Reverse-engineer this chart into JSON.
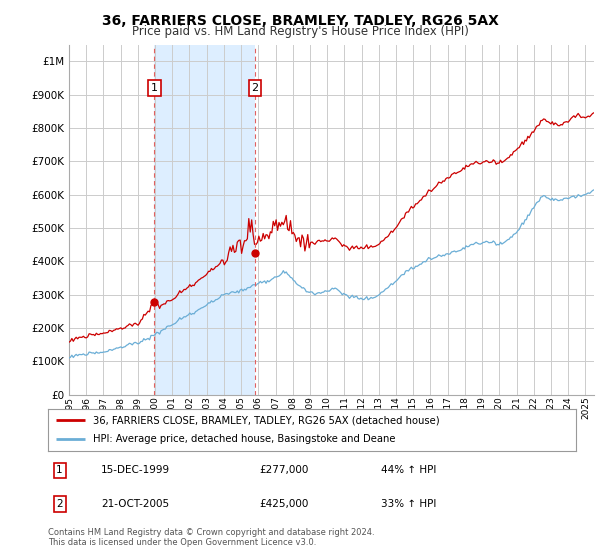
{
  "title": "36, FARRIERS CLOSE, BRAMLEY, TADLEY, RG26 5AX",
  "subtitle": "Price paid vs. HM Land Registry's House Price Index (HPI)",
  "ytick_values": [
    0,
    100000,
    200000,
    300000,
    400000,
    500000,
    600000,
    700000,
    800000,
    900000,
    1000000
  ],
  "ylim": [
    0,
    1050000
  ],
  "xlim_start": 1995.0,
  "xlim_end": 2025.5,
  "sale1_x": 1999.96,
  "sale1_y": 277000,
  "sale1_label": "1",
  "sale1_date": "15-DEC-1999",
  "sale1_price": "£277,000",
  "sale1_hpi": "44% ↑ HPI",
  "sale2_x": 2005.8,
  "sale2_y": 425000,
  "sale2_label": "2",
  "sale2_date": "21-OCT-2005",
  "sale2_price": "£425,000",
  "sale2_hpi": "33% ↑ HPI",
  "hpi_color": "#6baed6",
  "sale_color": "#cc0000",
  "vline_color": "#e06060",
  "shade_color": "#ddeeff",
  "grid_color": "#cccccc",
  "background_color": "#ffffff",
  "legend_label_red": "36, FARRIERS CLOSE, BRAMLEY, TADLEY, RG26 5AX (detached house)",
  "legend_label_blue": "HPI: Average price, detached house, Basingstoke and Deane",
  "footer": "Contains HM Land Registry data © Crown copyright and database right 2024.\nThis data is licensed under the Open Government Licence v3.0.",
  "xtick_years": [
    1995,
    1996,
    1997,
    1998,
    1999,
    2000,
    2001,
    2002,
    2003,
    2004,
    2005,
    2006,
    2007,
    2008,
    2009,
    2010,
    2011,
    2012,
    2013,
    2014,
    2015,
    2016,
    2017,
    2018,
    2019,
    2020,
    2021,
    2022,
    2023,
    2024,
    2025
  ]
}
